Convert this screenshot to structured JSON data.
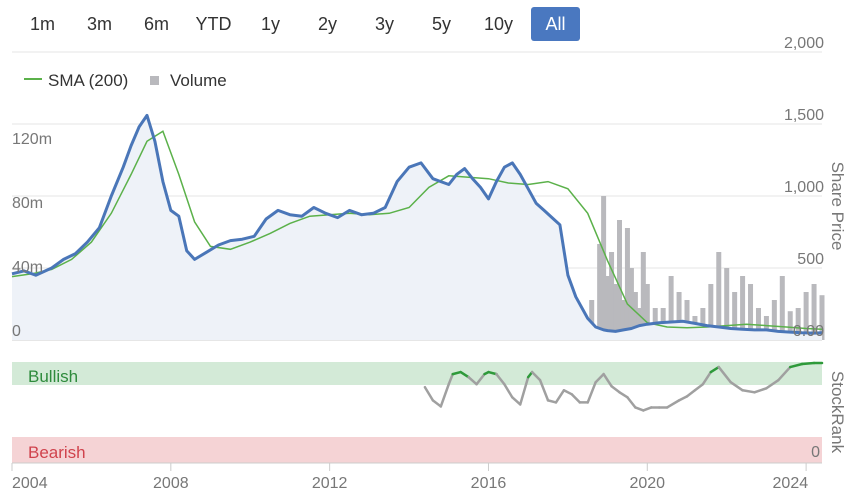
{
  "range_buttons": [
    "1m",
    "3m",
    "6m",
    "YTD",
    "1y",
    "2y",
    "3y",
    "5y",
    "10y",
    "All"
  ],
  "active_range": "All",
  "colors": {
    "price": "#4a76b8",
    "sma": "#5bb14a",
    "volume": "#b9b9bd",
    "bullish_band": "#d3ead7",
    "bearish_band": "#f5d3d5",
    "bullish_text": "#2e8b3c",
    "bearish_text": "#d0434d",
    "stockrank_green": "#2e9a3a",
    "stockrank_gray": "#a0a0a0",
    "active_button": "#4a78c0"
  },
  "chart_data": {
    "type": "line",
    "legend": {
      "sma_label": "SMA (200)",
      "volume_label": "Volume",
      "placement": "top-left"
    },
    "price_axis": {
      "title": "Share Price",
      "ticks": [
        "2,000",
        "1,500",
        "1,000",
        "500",
        "0.00"
      ],
      "tick_values": [
        2000,
        1500,
        1000,
        500,
        0
      ],
      "ylim": [
        0,
        2000
      ]
    },
    "volume_axis": {
      "ticks": [
        "120m",
        "80m",
        "40m",
        "0"
      ],
      "tick_values": [
        120,
        80,
        40,
        0
      ],
      "ylim": [
        0,
        180
      ]
    },
    "stockrank_axis": {
      "title": "StockRank",
      "zero_label": "0",
      "bullish_label": "Bullish",
      "bearish_label": "Bearish"
    },
    "x_axis": {
      "ticks": [
        "2004",
        "2008",
        "2012",
        "2016",
        "2020",
        "2024"
      ],
      "tick_values": [
        2004,
        2008,
        2012,
        2016,
        2020,
        2024
      ],
      "xlim": [
        2004,
        2024.4
      ]
    },
    "series": [
      {
        "name": "Share Price",
        "x": [
          2004.0,
          2004.3,
          2004.6,
          2005.0,
          2005.3,
          2005.6,
          2005.9,
          2006.2,
          2006.5,
          2006.8,
          2007.0,
          2007.2,
          2007.4,
          2007.6,
          2007.8,
          2008.0,
          2008.2,
          2008.4,
          2008.6,
          2008.9,
          2009.2,
          2009.5,
          2009.8,
          2010.1,
          2010.4,
          2010.7,
          2011.0,
          2011.3,
          2011.6,
          2011.9,
          2012.2,
          2012.5,
          2012.8,
          2013.1,
          2013.4,
          2013.7,
          2014.0,
          2014.3,
          2014.6,
          2014.8,
          2015.0,
          2015.2,
          2015.4,
          2015.6,
          2015.8,
          2016.0,
          2016.2,
          2016.4,
          2016.6,
          2016.8,
          2017.0,
          2017.2,
          2017.4,
          2017.6,
          2017.8,
          2018.0,
          2018.2,
          2018.5,
          2018.7,
          2018.9,
          2019.0,
          2019.2,
          2019.4,
          2019.6,
          2019.8,
          2020.0,
          2020.3,
          2020.6,
          2020.9,
          2021.2,
          2021.5,
          2021.8,
          2022.1,
          2022.4,
          2022.7,
          2023.0,
          2023.3,
          2023.6,
          2023.9,
          2024.2,
          2024.4
        ],
        "values": [
          460,
          480,
          450,
          500,
          560,
          600,
          680,
          780,
          1000,
          1200,
          1350,
          1480,
          1560,
          1380,
          1100,
          900,
          860,
          620,
          560,
          610,
          660,
          690,
          700,
          720,
          840,
          900,
          870,
          860,
          920,
          880,
          850,
          900,
          870,
          880,
          920,
          1100,
          1200,
          1230,
          1120,
          1100,
          1080,
          1150,
          1190,
          1120,
          1060,
          980,
          1100,
          1200,
          1230,
          1150,
          1050,
          950,
          900,
          850,
          800,
          450,
          300,
          150,
          90,
          70,
          65,
          60,
          70,
          80,
          100,
          110,
          120,
          125,
          130,
          115,
          100,
          90,
          80,
          75,
          70,
          70,
          60,
          55,
          50,
          48,
          50
        ]
      },
      {
        "name": "SMA (200)",
        "x": [
          2004.0,
          2004.5,
          2005.0,
          2005.5,
          2006.0,
          2006.5,
          2007.0,
          2007.4,
          2007.8,
          2008.2,
          2008.6,
          2009.0,
          2009.5,
          2010.0,
          2010.5,
          2011.0,
          2011.5,
          2012.0,
          2012.5,
          2013.0,
          2013.5,
          2014.0,
          2014.5,
          2015.0,
          2015.5,
          2016.0,
          2016.5,
          2017.0,
          2017.5,
          2018.0,
          2018.5,
          2019.0,
          2019.5,
          2020.0,
          2020.5,
          2021.0,
          2021.5,
          2022.0,
          2022.5,
          2023.0,
          2023.5,
          2024.0,
          2024.4
        ],
        "values": [
          440,
          460,
          490,
          560,
          680,
          880,
          1150,
          1380,
          1450,
          1150,
          820,
          650,
          630,
          680,
          740,
          810,
          860,
          870,
          880,
          870,
          880,
          920,
          1060,
          1140,
          1130,
          1120,
          1090,
          1080,
          1100,
          1050,
          880,
          550,
          250,
          120,
          90,
          85,
          90,
          100,
          110,
          100,
          90,
          80,
          75
        ]
      },
      {
        "name": "StockRank",
        "x": [
          2014.4,
          2014.6,
          2014.8,
          2015.0,
          2015.1,
          2015.3,
          2015.5,
          2015.7,
          2015.9,
          2016.0,
          2016.2,
          2016.4,
          2016.6,
          2016.8,
          2017.0,
          2017.1,
          2017.3,
          2017.5,
          2017.7,
          2017.9,
          2018.1,
          2018.3,
          2018.5,
          2018.7,
          2018.9,
          2019.1,
          2019.3,
          2019.5,
          2019.7,
          2019.9,
          2020.1,
          2020.3,
          2020.5,
          2020.8,
          2021.0,
          2021.2,
          2021.4,
          2021.6,
          2021.8,
          2022.1,
          2022.4,
          2022.7,
          2023.0,
          2023.3,
          2023.6,
          2023.9,
          2024.2,
          2024.4
        ],
        "values": [
          75,
          62,
          56,
          78,
          88,
          90,
          85,
          78,
          88,
          90,
          88,
          78,
          65,
          58,
          85,
          90,
          82,
          62,
          60,
          72,
          68,
          60,
          60,
          80,
          88,
          76,
          70,
          65,
          55,
          52,
          55,
          55,
          55,
          62,
          66,
          72,
          78,
          90,
          95,
          80,
          72,
          70,
          74,
          82,
          95,
          98,
          99,
          99
        ]
      }
    ],
    "volume": {
      "x": [
        2004.5,
        2005.0,
        2005.5,
        2006.0,
        2006.5,
        2007.0,
        2007.5,
        2008.0,
        2008.5,
        2009.0,
        2009.5,
        2010.0,
        2010.5,
        2011.0,
        2011.5,
        2012.0,
        2012.5,
        2013.0,
        2013.5,
        2014.0,
        2014.5,
        2015.0,
        2015.5,
        2016.0,
        2016.5,
        2017.0,
        2017.5,
        2018.0,
        2018.3,
        2018.6,
        2018.8,
        2018.9,
        2019.0,
        2019.1,
        2019.2,
        2019.3,
        2019.4,
        2019.5,
        2019.6,
        2019.7,
        2019.8,
        2019.9,
        2020.0,
        2020.2,
        2020.4,
        2020.6,
        2020.8,
        2021.0,
        2021.2,
        2021.4,
        2021.6,
        2021.8,
        2022.0,
        2022.2,
        2022.4,
        2022.6,
        2022.8,
        2023.0,
        2023.2,
        2023.4,
        2023.6,
        2023.8,
        2024.0,
        2024.2,
        2024.4
      ],
      "values": [
        3,
        4,
        4,
        5,
        5,
        6,
        6,
        7,
        5,
        5,
        4,
        4,
        4,
        5,
        4,
        4,
        4,
        4,
        4,
        5,
        5,
        5,
        6,
        6,
        5,
        6,
        7,
        10,
        15,
        25,
        60,
        90,
        40,
        55,
        35,
        75,
        25,
        70,
        45,
        30,
        20,
        55,
        35,
        20,
        20,
        40,
        30,
        25,
        15,
        20,
        35,
        55,
        45,
        30,
        40,
        35,
        20,
        15,
        25,
        40,
        18,
        20,
        30,
        35,
        28
      ]
    }
  }
}
